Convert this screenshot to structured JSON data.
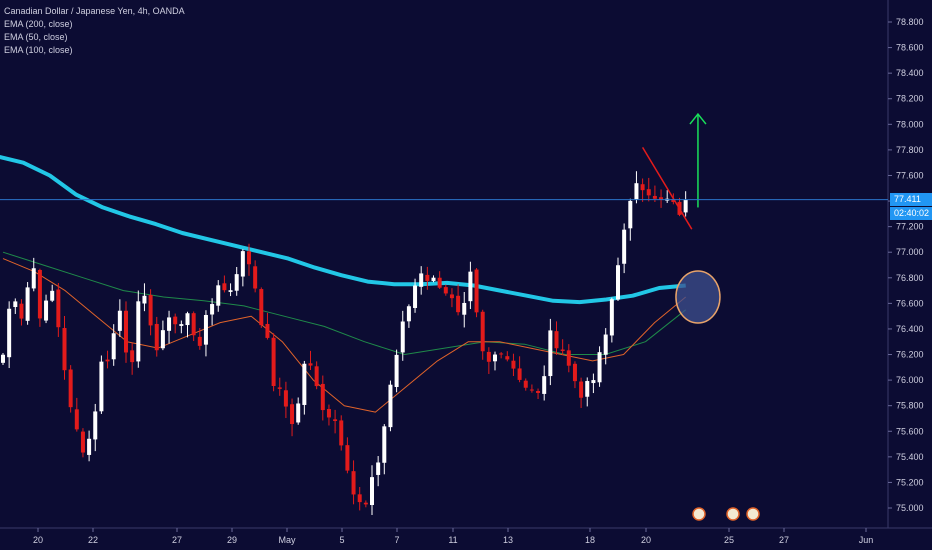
{
  "header": {
    "symbol": "Canadian Dollar / Japanese Yen, 4h, OANDA",
    "indicators": [
      "EMA (200, close)",
      "EMA (50, close)",
      "EMA (100, close)"
    ]
  },
  "price_axis": {
    "current_price": "77.411",
    "countdown": "02:40:02",
    "tag_color": "#2196f3"
  },
  "colors": {
    "background": "#0c0c33",
    "bull": "#ffffff",
    "bear": "#e31b1b",
    "ema200": "#22c7e6",
    "ema50": "#e0632a",
    "ema100": "#1f8a4a",
    "arrow": "#19e05a",
    "trendline": "#e31b1b",
    "circle_fill": "#3d4f8f",
    "circle_stroke": "#e8a36a",
    "price_line": "#2a73c9"
  },
  "chart_data": {
    "type": "candlestick",
    "title": "Canadian Dollar / Japanese Yen, 4h, OANDA",
    "ylim": [
      74.9,
      78.95
    ],
    "yticks": [
      75.0,
      75.2,
      75.4,
      75.6,
      75.8,
      76.0,
      76.2,
      76.4,
      76.6,
      76.8,
      77.0,
      77.2,
      77.4,
      77.6,
      77.8,
      78.0,
      78.2,
      78.4,
      78.6,
      78.8
    ],
    "ytick_labels": [
      "75.000",
      "75.200",
      "75.400",
      "75.600",
      "75.800",
      "76.000",
      "76.200",
      "76.400",
      "76.600",
      "76.800",
      "77.000",
      "77.200",
      "77.400",
      "77.600",
      "77.800",
      "78.000",
      "78.200",
      "78.400",
      "78.600",
      "78.800"
    ],
    "xtick_labels": [
      "20",
      "22",
      "27",
      "29",
      "May",
      "5",
      "7",
      "11",
      "13",
      "18",
      "20",
      "25",
      "27",
      "Jun"
    ],
    "n_candles": 112,
    "grid": false,
    "legend": "top-left",
    "close_path": [
      76.2,
      76.75,
      76.5,
      76.95,
      76.45,
      76.7,
      76.3,
      75.7,
      75.5,
      75.55,
      76.1,
      76.25,
      76.55,
      76.1,
      76.6,
      76.55,
      76.15,
      76.55,
      76.4,
      76.5,
      76.3,
      76.45,
      76.8,
      76.65,
      76.9,
      77.0,
      76.7,
      76.3,
      75.9,
      75.8,
      75.65,
      76.2,
      75.95,
      75.8,
      75.7,
      75.5,
      75.1,
      74.95,
      75.2,
      75.6,
      76.1,
      76.4,
      76.7,
      76.9,
      76.75,
      76.8,
      76.6,
      76.4,
      76.8,
      76.2,
      76.1,
      76.3,
      76.15,
      76.05,
      75.9,
      75.85,
      76.3,
      76.35,
      76.1,
      75.95,
      75.9,
      76.1,
      76.4,
      76.95,
      77.2,
      77.6,
      77.55,
      77.35,
      77.4,
      77.3,
      77.41
    ],
    "close_path_note": "",
    "ema200": [
      77.75,
      77.7,
      77.6,
      77.45,
      77.35,
      77.28,
      77.22,
      77.15,
      77.1,
      77.05,
      77.0,
      76.95,
      76.88,
      76.82,
      76.77,
      76.75,
      76.75,
      76.76,
      76.74,
      76.7,
      76.66,
      76.62,
      76.61,
      76.63,
      76.66,
      76.72,
      76.74
    ],
    "ema50": [
      76.95,
      76.85,
      76.7,
      76.5,
      76.3,
      76.25,
      76.35,
      76.45,
      76.5,
      76.3,
      76.0,
      75.8,
      75.75,
      75.95,
      76.15,
      76.3,
      76.3,
      76.25,
      76.2,
      76.15,
      76.2,
      76.45,
      76.65
    ],
    "ema100": [
      77.0,
      76.9,
      76.8,
      76.7,
      76.65,
      76.62,
      76.58,
      76.5,
      76.42,
      76.3,
      76.2,
      76.25,
      76.3,
      76.28,
      76.2,
      76.2,
      76.3,
      76.55
    ],
    "annotations": {
      "trendline": {
        "from": {
          "candle": 104,
          "price": 77.82
        },
        "to": {
          "candle": 112,
          "price": 77.18
        }
      },
      "target_arrow": {
        "candle": 113,
        "from_price": 77.35,
        "to_price": 78.08
      },
      "circle": {
        "candle": 113,
        "price": 76.65
      }
    }
  }
}
